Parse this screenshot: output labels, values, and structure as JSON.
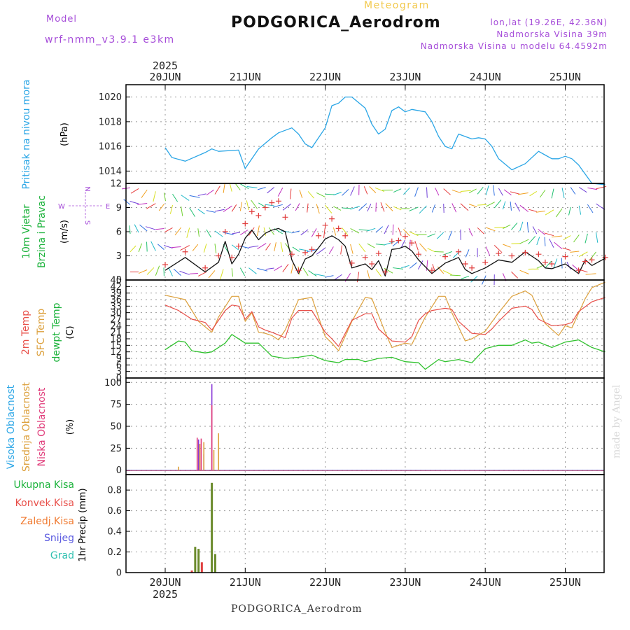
{
  "header": {
    "model_label": "Model",
    "model_name": "wrf-nmm_v3.9.1 e3km",
    "subtitle": "Meteogram",
    "station": "PODGORICA_Aerodrom",
    "coords": "lon,lat (19.26E, 42.36N)",
    "elevation": "Nadmorska Visina 39m",
    "model_elevation": "Nadmorska Visina u modelu 64.4592m"
  },
  "footer": {
    "station": "PODGORICA_Aerodrom",
    "credit": "made by Angel"
  },
  "colors": {
    "pressure": "#2ba6e6",
    "temp2m": "#e8504a",
    "sfc": "#dca03c",
    "dewpt": "#31c22f",
    "wind": "#111111",
    "wind_barb": "#e03c3c"
  },
  "chart_data": [
    {
      "type": "line",
      "title": "Pritisak na nivou mora",
      "ylabel": "(hPa)",
      "ylim": [
        1013,
        1021
      ],
      "yticks": [
        "1014",
        "1016",
        "1018",
        "1020"
      ],
      "x_top": [
        "20JUN",
        "21JUN",
        "22JUN",
        "23JUN",
        "24JUN",
        "25JUN"
      ],
      "year_top": "2025",
      "series": [
        {
          "name": "pressure",
          "x": [
            0,
            0.083,
            0.25,
            0.5,
            0.583,
            0.667,
            0.917,
            1.0,
            1.083,
            1.167,
            1.333,
            1.417,
            1.583,
            1.667,
            1.75,
            1.833,
            2.0,
            2.083,
            2.167,
            2.25,
            2.333,
            2.5,
            2.583,
            2.667,
            2.75,
            2.833,
            2.917,
            3.0,
            3.083,
            3.25,
            3.333,
            3.417,
            3.5,
            3.583,
            3.667,
            3.75,
            3.833,
            3.917,
            4.0,
            4.083,
            4.167,
            4.333,
            4.5,
            4.667,
            4.75,
            4.833,
            4.917,
            5.0,
            5.083,
            5.167,
            5.333,
            5.5
          ],
          "values": [
            1015.9,
            1015.1,
            1014.8,
            1015.5,
            1015.8,
            1015.6,
            1015.7,
            1014.2,
            1015.0,
            1015.8,
            1016.7,
            1017.1,
            1017.5,
            1017.0,
            1016.2,
            1015.9,
            1017.5,
            1019.3,
            1019.5,
            1020.0,
            1020.0,
            1019.1,
            1017.8,
            1017.0,
            1017.4,
            1018.9,
            1019.2,
            1018.8,
            1019.0,
            1018.8,
            1018.0,
            1016.8,
            1016.0,
            1015.8,
            1017.0,
            1016.8,
            1016.6,
            1016.7,
            1016.6,
            1016.0,
            1015.0,
            1014.1,
            1014.6,
            1015.6,
            1015.3,
            1015.0,
            1015.0,
            1015.2,
            1015.0,
            1014.5,
            1013.0,
            1012.9
          ]
        }
      ]
    },
    {
      "type": "line",
      "title": "10m Vjetar Brzina i Pravac",
      "ylabel": "(m/s)",
      "ylim": [
        0,
        12
      ],
      "yticks": [
        "0",
        "3",
        "6",
        "9",
        "12"
      ],
      "compass": {
        "north": "N",
        "south": "S",
        "west": "W",
        "east": "E"
      },
      "series": [
        {
          "name": "wind_speed",
          "x": [
            0,
            0.25,
            0.5,
            0.667,
            0.75,
            0.833,
            0.917,
            1.0,
            1.083,
            1.167,
            1.25,
            1.333,
            1.417,
            1.5,
            1.583,
            1.667,
            1.75,
            1.833,
            1.917,
            2.0,
            2.083,
            2.167,
            2.25,
            2.333,
            2.5,
            2.583,
            2.667,
            2.75,
            2.833,
            2.917,
            3.0,
            3.083,
            3.167,
            3.333,
            3.5,
            3.667,
            3.75,
            3.833,
            4.0,
            4.167,
            4.333,
            4.5,
            4.667,
            4.75,
            4.833,
            5.0,
            5.167,
            5.25,
            5.333,
            5.5
          ],
          "values": [
            1.2,
            2.8,
            1.0,
            2.2,
            4.8,
            2.0,
            3.2,
            5.2,
            6.2,
            5.0,
            5.8,
            6.2,
            6.4,
            6.0,
            2.5,
            0.8,
            2.6,
            3.0,
            4.0,
            5.1,
            5.5,
            5.0,
            4.2,
            1.5,
            2.0,
            1.3,
            2.4,
            0.5,
            3.8,
            3.9,
            4.2,
            3.6,
            2.5,
            0.8,
            2.1,
            2.8,
            1.3,
            0.8,
            1.5,
            2.5,
            2.2,
            3.5,
            2.4,
            1.5,
            1.4,
            2.0,
            0.8,
            2.5,
            1.8,
            2.7
          ]
        },
        {
          "name": "wind_barbs",
          "x": [
            0,
            0.25,
            0.5,
            0.667,
            0.75,
            0.833,
            0.917,
            1.0,
            1.083,
            1.167,
            1.25,
            1.333,
            1.417,
            1.5,
            1.583,
            1.667,
            1.75,
            1.833,
            1.917,
            2.0,
            2.083,
            2.167,
            2.25,
            2.333,
            2.5,
            2.583,
            2.667,
            2.75,
            2.833,
            2.917,
            3.0,
            3.083,
            3.167,
            3.333,
            3.5,
            3.667,
            3.75,
            3.833,
            4.0,
            4.167,
            4.333,
            4.5,
            4.667,
            4.75,
            4.833,
            5.0,
            5.167,
            5.25,
            5.333,
            5.5
          ],
          "values": [
            1.9,
            3.5,
            1.5,
            3.0,
            6.0,
            2.8,
            4.2,
            7.0,
            8.5,
            8.0,
            9.0,
            9.6,
            9.8,
            7.8,
            3.2,
            1.2,
            3.4,
            3.8,
            5.5,
            6.8,
            7.6,
            6.4,
            5.5,
            2.1,
            2.8,
            2.0,
            3.3,
            1.0,
            4.8,
            4.9,
            5.4,
            4.6,
            3.2,
            1.2,
            2.9,
            3.5,
            2.0,
            1.5,
            2.2,
            3.3,
            3.0,
            3.4,
            3.2,
            2.2,
            2.0,
            2.9,
            1.2,
            2.3,
            2.5,
            2.8
          ]
        }
      ],
      "vector_rows": [
        1,
        4,
        6,
        9,
        11
      ]
    },
    {
      "type": "line",
      "title": "2m Temp / SFC Temp / dewpt Temp",
      "labels": [
        "2m Temp",
        "SFC Temp",
        "dewpt Temp"
      ],
      "ylabel": "(C)",
      "ylim": [
        0,
        45
      ],
      "yticks": [
        "0",
        "3",
        "6",
        "9",
        "12",
        "15",
        "18",
        "21",
        "24",
        "27",
        "30",
        "33",
        "36",
        "39",
        "42",
        "45"
      ],
      "series": [
        {
          "name": "2m Temp",
          "x": [
            0,
            0.167,
            0.333,
            0.5,
            0.583,
            0.75,
            0.833,
            0.917,
            1.0,
            1.083,
            1.167,
            1.25,
            1.333,
            1.5,
            1.583,
            1.667,
            1.833,
            2.0,
            2.083,
            2.167,
            2.25,
            2.333,
            2.5,
            2.583,
            2.667,
            2.833,
            3.0,
            3.083,
            3.167,
            3.25,
            3.333,
            3.5,
            3.583,
            3.667,
            3.833,
            4.0,
            4.083,
            4.167,
            4.25,
            4.333,
            4.5,
            4.583,
            4.667,
            4.833,
            5.0,
            5.083,
            5.167,
            5.333,
            5.5
          ],
          "values": [
            33.5,
            31.0,
            27.0,
            25.5,
            22.0,
            31.0,
            33.5,
            33.0,
            27.0,
            30.5,
            23.5,
            22.0,
            21.0,
            18.5,
            27.5,
            31.0,
            31.0,
            21.0,
            18.0,
            14.5,
            20.5,
            26.5,
            29.5,
            29.5,
            22.5,
            17.0,
            16.5,
            19.0,
            26.5,
            29.5,
            31.0,
            32.0,
            31.5,
            26.0,
            20.5,
            20.0,
            22.5,
            26.0,
            29.0,
            32.0,
            33.0,
            31.5,
            27.0,
            24.0,
            24.5,
            25.5,
            30.5,
            35.0,
            37.0
          ]
        },
        {
          "name": "SFC Temp",
          "x": [
            0,
            0.25,
            0.417,
            0.583,
            0.667,
            0.833,
            0.917,
            1.0,
            1.083,
            1.167,
            1.25,
            1.333,
            1.417,
            1.5,
            1.667,
            1.833,
            2.0,
            2.083,
            2.167,
            2.333,
            2.5,
            2.583,
            2.75,
            2.833,
            3.0,
            3.083,
            3.25,
            3.417,
            3.5,
            3.583,
            3.75,
            3.833,
            4.0,
            4.167,
            4.333,
            4.5,
            4.583,
            4.75,
            4.917,
            5.0,
            5.083,
            5.25,
            5.333,
            5.5
          ],
          "values": [
            38.0,
            36.0,
            26.0,
            21.0,
            28.0,
            37.5,
            37.5,
            26.0,
            30.0,
            21.0,
            20.5,
            19.5,
            17.5,
            22.0,
            36.0,
            37.0,
            19.0,
            16.0,
            12.5,
            26.0,
            37.0,
            36.5,
            21.0,
            14.0,
            16.0,
            15.5,
            28.0,
            37.5,
            37.5,
            30.0,
            17.0,
            18.0,
            21.5,
            30.0,
            37.5,
            40.0,
            38.0,
            25.0,
            19.5,
            24.0,
            23.0,
            36.5,
            41.5,
            44.0
          ]
        },
        {
          "name": "dewpt Temp",
          "x": [
            0,
            0.167,
            0.25,
            0.333,
            0.5,
            0.583,
            0.75,
            0.833,
            1.0,
            1.167,
            1.333,
            1.5,
            1.667,
            1.833,
            2.0,
            2.167,
            2.25,
            2.417,
            2.5,
            2.667,
            2.833,
            3.0,
            3.167,
            3.25,
            3.417,
            3.5,
            3.667,
            3.833,
            4.0,
            4.167,
            4.333,
            4.5,
            4.583,
            4.667,
            4.833,
            5.0,
            5.167,
            5.333,
            5.5
          ],
          "values": [
            13.0,
            17.0,
            16.5,
            12.5,
            11.5,
            12.0,
            16.0,
            20.0,
            16.0,
            16.0,
            10.0,
            9.0,
            9.5,
            10.5,
            8.0,
            7.0,
            8.5,
            8.5,
            7.5,
            9.0,
            9.5,
            7.5,
            7.0,
            4.0,
            8.5,
            7.5,
            8.5,
            7.0,
            13.5,
            15.0,
            15.0,
            17.5,
            16.0,
            16.5,
            14.0,
            16.5,
            17.5,
            14.0,
            12.0
          ]
        }
      ]
    },
    {
      "type": "bar",
      "title": "Visoka / Srednja / Niska Oblacnost",
      "labels": [
        "Visoka Oblacnost",
        "Srednja Oblacnost",
        "Niska Oblacnost"
      ],
      "ylabel": "(%)",
      "ylim": [
        -5,
        105
      ],
      "yticks": [
        "0",
        "25",
        "50",
        "75",
        "100"
      ],
      "series": [
        {
          "name": "Visoka",
          "x": [
            0.417,
            0.483,
            0.583,
            0.633
          ],
          "values": [
            35,
            18,
            98,
            0
          ]
        },
        {
          "name": "Srednja",
          "x": [
            0.167,
            0.433,
            0.483,
            0.608,
            0.667
          ],
          "values": [
            4,
            30,
            32,
            23,
            42
          ]
        },
        {
          "name": "Niska",
          "x": [
            0.4,
            0.45,
            0.583
          ],
          "values": [
            37,
            36,
            74
          ]
        }
      ]
    },
    {
      "type": "bar",
      "title": "1hr Precip",
      "labels": [
        "Ukupna Kisa",
        "Konvek.Kisa",
        "Zaledj.Kisa",
        "Snijeg",
        "Grad"
      ],
      "ylabel": "1hr Precip (mm)",
      "ylim": [
        0,
        0.95
      ],
      "yticks": [
        "0",
        "0.2",
        "0.4",
        "0.6",
        "0.8"
      ],
      "x_bottom": [
        "20JUN",
        "21JUN",
        "22JUN",
        "23JUN",
        "24JUN",
        "25JUN"
      ],
      "year_bottom": "2025",
      "series": [
        {
          "name": "Ukupna Kisa",
          "x": [
            0.375,
            0.417,
            0.583,
            0.625
          ],
          "values": [
            0.25,
            0.23,
            0.87,
            0.18
          ]
        },
        {
          "name": "Konvek.Kisa",
          "x": [
            0.333,
            0.458
          ],
          "values": [
            0.02,
            0.1
          ]
        }
      ]
    }
  ]
}
